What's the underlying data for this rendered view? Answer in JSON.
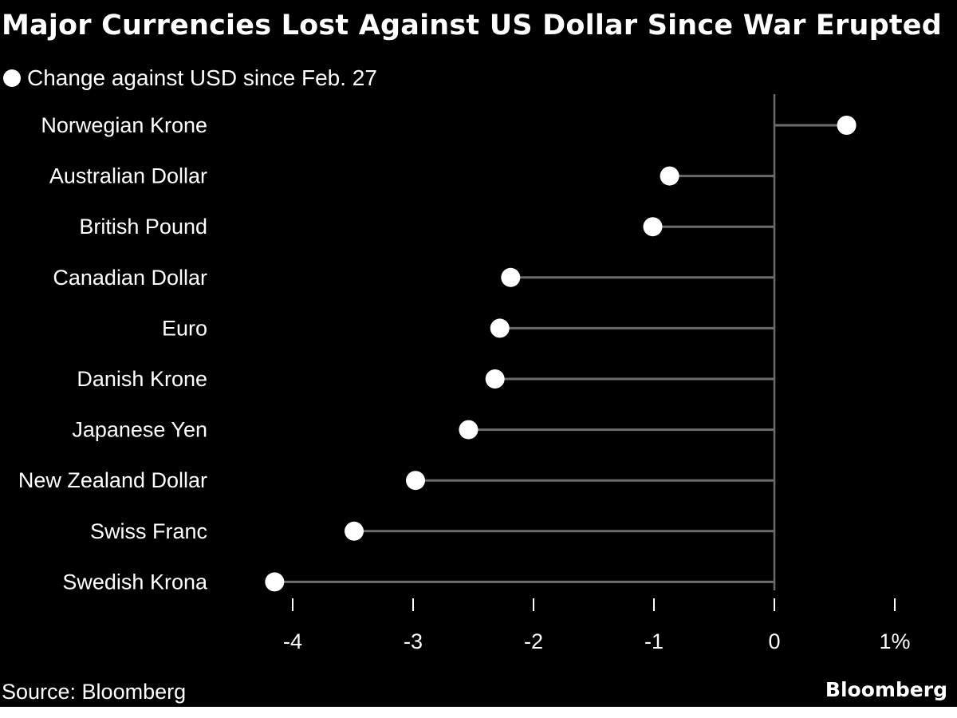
{
  "colors": {
    "background": "#000000",
    "text": "#ffffff",
    "point": "#ffffff",
    "stem": "#6b6b6b",
    "tick": "#ffffff"
  },
  "chart_data": {
    "type": "lollipop",
    "title": "Major Currencies Lost Against US Dollar Since War Erupted",
    "legend": {
      "label": "Change against USD since Feb. 27",
      "placement": "top-left"
    },
    "categories": [
      "Norwegian Krone",
      "Australian Dollar",
      "British Pound",
      "Canadian Dollar",
      "Euro",
      "Danish Krone",
      "Japanese Yen",
      "New Zealand Dollar",
      "Swiss Franc",
      "Swedish Krona"
    ],
    "series": [
      {
        "name": "Change against USD since Feb. 27",
        "values": [
          0.6,
          -0.87,
          -1.01,
          -2.19,
          -2.28,
          -2.32,
          -2.54,
          -2.98,
          -3.49,
          -4.15
        ]
      }
    ],
    "xlim": [
      -4,
      1
    ],
    "xticks": [
      {
        "value": -4,
        "label": "-4"
      },
      {
        "value": -3,
        "label": "-3"
      },
      {
        "value": -2,
        "label": "-2"
      },
      {
        "value": -1,
        "label": "-1"
      },
      {
        "value": 0,
        "label": "0"
      },
      {
        "value": 1,
        "label": "1%"
      }
    ],
    "grid": false,
    "source": "Source: Bloomberg",
    "brand": "Bloomberg"
  }
}
